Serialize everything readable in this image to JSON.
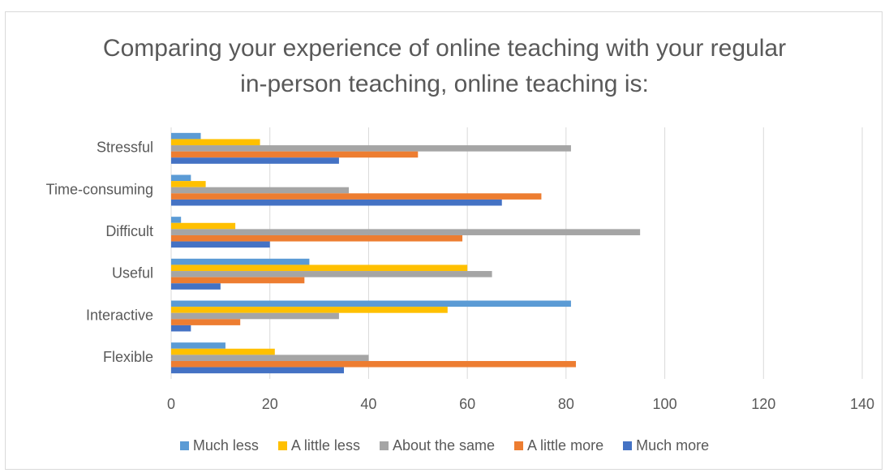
{
  "chart_data": {
    "type": "hbar",
    "title": "Comparing your experience of online teaching with your regular in-person teaching, online teaching is:",
    "categories": [
      "Stressful",
      "Time-consuming",
      "Difficult",
      "Useful",
      "Interactive",
      "Flexible"
    ],
    "series": [
      {
        "name": "Much less",
        "color": "#5b9bd5",
        "values": [
          6,
          4,
          2,
          28,
          81,
          11
        ]
      },
      {
        "name": "A little less",
        "color": "#ffc000",
        "values": [
          18,
          7,
          13,
          60,
          56,
          21
        ]
      },
      {
        "name": "About the same",
        "color": "#a5a5a5",
        "values": [
          81,
          36,
          95,
          65,
          34,
          40
        ]
      },
      {
        "name": "A little more",
        "color": "#ed7d31",
        "values": [
          50,
          75,
          59,
          27,
          14,
          82
        ]
      },
      {
        "name": "Much more",
        "color": "#4472c4",
        "values": [
          34,
          67,
          20,
          10,
          4,
          35
        ]
      }
    ],
    "xlim": [
      0,
      140
    ],
    "xticks": [
      0,
      20,
      40,
      60,
      80,
      100,
      120,
      140
    ],
    "grid": true,
    "legend": "bottom"
  }
}
